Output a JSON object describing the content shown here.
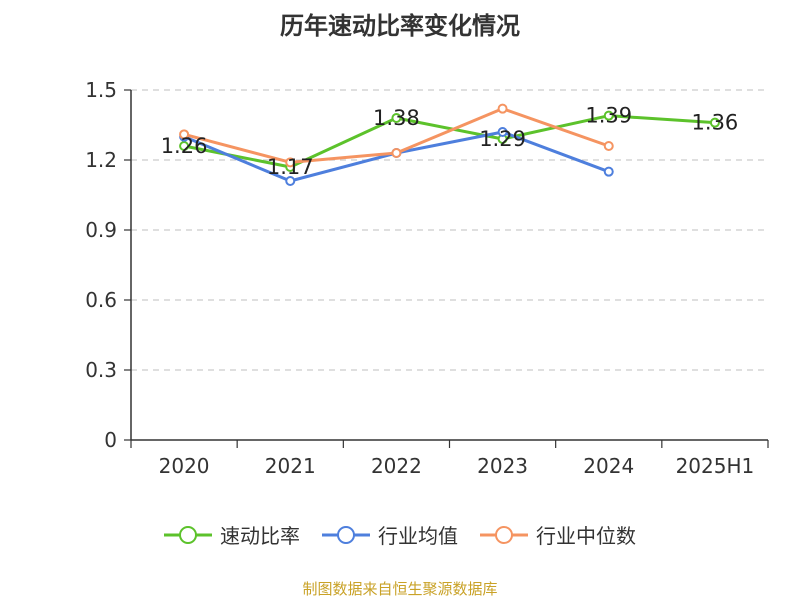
{
  "title": "历年速动比率变化情况",
  "source_note": "制图数据来自恒生聚源数据库",
  "colors": {
    "speed_ratio": "#5cc22b",
    "industry_avg": "#4e7fdd",
    "industry_median": "#f59461",
    "grid": "#cccccc",
    "axis": "#333333"
  },
  "chart_data": {
    "type": "line",
    "title": "历年速动比率变化情况",
    "categories": [
      "2020",
      "2021",
      "2022",
      "2023",
      "2024",
      "2025H1"
    ],
    "ylim": [
      0,
      1.5
    ],
    "yticks": [
      "0",
      "0.3",
      "0.6",
      "0.9",
      "1.2",
      "1.5"
    ],
    "grid": true,
    "legend_position": "bottom",
    "series": [
      {
        "name": "速动比率",
        "color": "#5cc22b",
        "values": [
          1.26,
          1.17,
          1.38,
          1.29,
          1.39,
          1.36
        ],
        "labels": [
          "1.26",
          "1.17",
          "1.38",
          "1.29",
          "1.39",
          "1.36"
        ]
      },
      {
        "name": "行业均值",
        "color": "#4e7fdd",
        "values": [
          1.3,
          1.11,
          1.23,
          1.32,
          1.15,
          null
        ]
      },
      {
        "name": "行业中位数",
        "color": "#f59461",
        "values": [
          1.31,
          1.19,
          1.23,
          1.42,
          1.26,
          null
        ]
      }
    ]
  }
}
